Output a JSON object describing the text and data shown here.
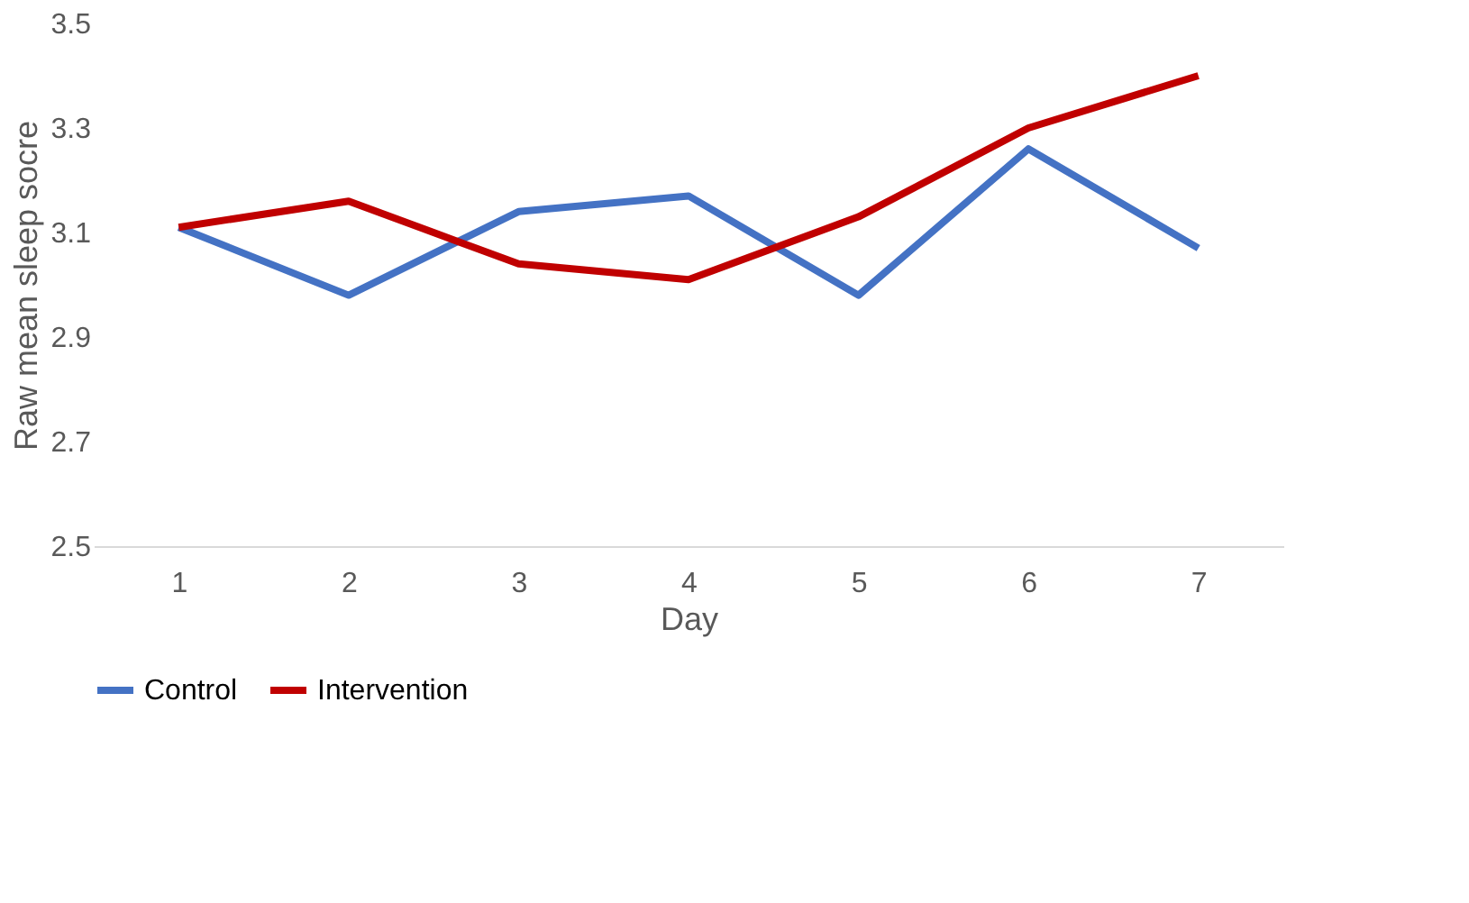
{
  "chart_data": {
    "type": "line",
    "xlabel": "Day",
    "ylabel": "Raw mean sleep socre",
    "categories": [
      "1",
      "2",
      "3",
      "4",
      "5",
      "6",
      "7"
    ],
    "series": [
      {
        "name": "Control",
        "color": "#4472c4",
        "values": [
          3.11,
          2.98,
          3.14,
          3.17,
          2.98,
          3.26,
          3.07
        ]
      },
      {
        "name": "Intervention",
        "color": "#c00000",
        "values": [
          3.11,
          3.16,
          3.04,
          3.01,
          3.13,
          3.3,
          3.4
        ]
      }
    ],
    "ylim": [
      2.5,
      3.5
    ],
    "yticks": [
      2.5,
      2.7,
      2.9,
      3.1,
      3.3,
      3.5
    ],
    "grid": false,
    "legend": "bottom",
    "marker": "none",
    "line_style": "solid"
  }
}
